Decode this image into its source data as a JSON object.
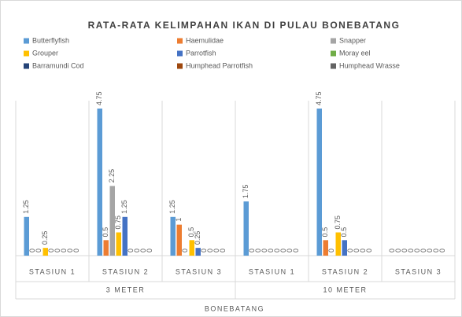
{
  "chart_data": {
    "type": "bar",
    "title": "RATA-RATA KELIMPAHAN IKAN DI PULAU BONEBATANG",
    "x_label": "BONEBATANG",
    "groups": [
      {
        "name": "3 METER",
        "categories": [
          "STASIUN 1",
          "STASIUN 2",
          "STASIUN 3"
        ]
      },
      {
        "name": "10 METER",
        "categories": [
          "STASIUN 1",
          "STASIUN 2",
          "STASIUN 3"
        ]
      }
    ],
    "series": [
      {
        "name": "Butterflyfish",
        "color": "#5b9bd5",
        "values": [
          1.25,
          4.75,
          1.25,
          1.75,
          4.75,
          0
        ]
      },
      {
        "name": "Haemulidae",
        "color": "#ed7d31",
        "values": [
          0,
          0.5,
          1,
          0,
          0.5,
          0
        ]
      },
      {
        "name": "Snapper",
        "color": "#a5a5a5",
        "values": [
          0,
          2.25,
          0,
          0,
          0,
          0
        ]
      },
      {
        "name": "Grouper",
        "color": "#ffc000",
        "values": [
          0.25,
          0.75,
          0.5,
          0,
          0.75,
          0
        ]
      },
      {
        "name": "Parrotfish",
        "color": "#4472c4",
        "values": [
          0,
          1.25,
          0.25,
          0,
          0.5,
          0
        ]
      },
      {
        "name": "Moray eel",
        "color": "#70ad47",
        "values": [
          0,
          0,
          0,
          0,
          0,
          0
        ]
      },
      {
        "name": "Barramundi Cod",
        "color": "#264478",
        "values": [
          0,
          0,
          0,
          0,
          0,
          0
        ]
      },
      {
        "name": "Humphead Parrotfish",
        "color": "#9e480e",
        "values": [
          0,
          0,
          0,
          0,
          0,
          0
        ]
      },
      {
        "name": "Humphead Wrasse",
        "color": "#636363",
        "values": [
          0,
          0,
          0,
          0,
          0,
          0
        ]
      }
    ]
  }
}
